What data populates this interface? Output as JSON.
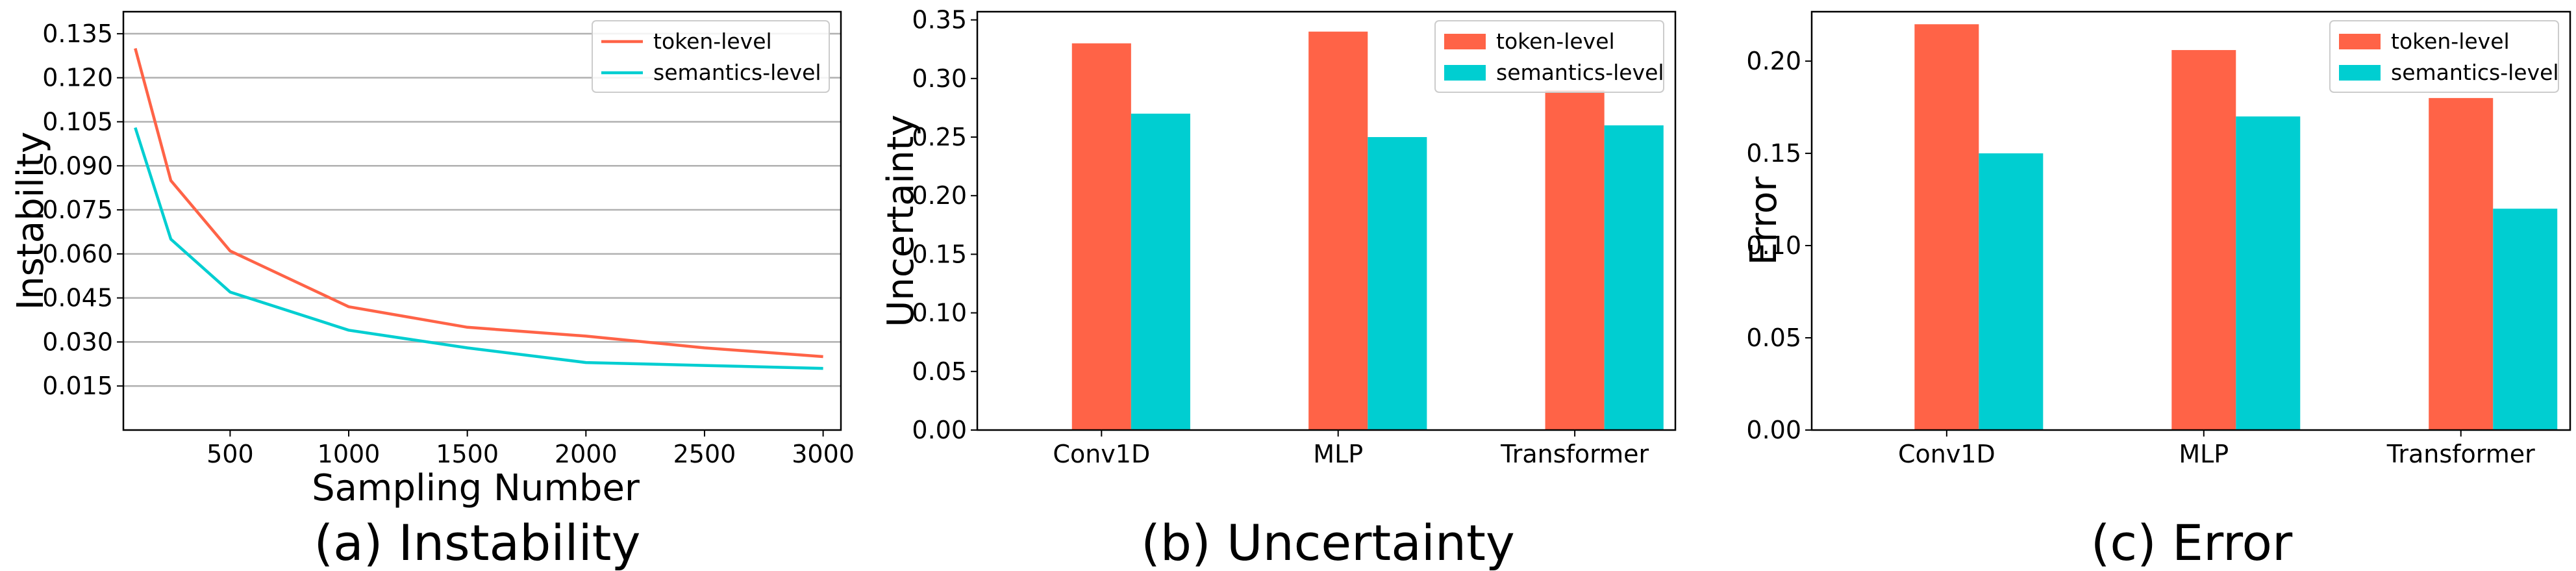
{
  "colors": {
    "token": "#ff6347",
    "semantics": "#00ced1",
    "grid": "#b0b0b0",
    "axis": "#000000"
  },
  "chart_data": [
    {
      "type": "line",
      "caption": "(a) Instability",
      "xlabel": "Sampling Number",
      "ylabel": "Instability",
      "xlim": [
        50,
        3075
      ],
      "ylim": [
        0.0,
        0.1425
      ],
      "xticks": [
        500,
        1000,
        1500,
        2000,
        2500,
        3000
      ],
      "yticks": [
        0.015,
        0.03,
        0.045,
        0.06,
        0.075,
        0.09,
        0.105,
        0.12,
        0.135
      ],
      "ytick_labels": [
        "0.015",
        "0.030",
        "0.045",
        "0.060",
        "0.075",
        "0.090",
        "0.105",
        "0.120",
        "0.135"
      ],
      "grid": "horizontal",
      "legend": "top-right",
      "x": [
        100,
        250,
        500,
        1000,
        1500,
        2000,
        2500,
        3000
      ],
      "series": [
        {
          "name": "token-level",
          "color_key": "token",
          "values": [
            0.13,
            0.085,
            0.061,
            0.042,
            0.035,
            0.032,
            0.028,
            0.025
          ]
        },
        {
          "name": "semantics-level",
          "color_key": "semantics",
          "values": [
            0.103,
            0.065,
            0.047,
            0.034,
            0.028,
            0.023,
            0.022,
            0.021
          ]
        }
      ]
    },
    {
      "type": "bar",
      "caption": "(b) Uncertainty",
      "xlabel": "",
      "ylabel": "Uncertainty",
      "ylim": [
        0.0,
        0.357
      ],
      "yticks": [
        0.0,
        0.05,
        0.1,
        0.15,
        0.2,
        0.25,
        0.3,
        0.35
      ],
      "ytick_labels": [
        "0.00",
        "0.05",
        "0.10",
        "0.15",
        "0.20",
        "0.25",
        "0.30",
        "0.35"
      ],
      "grid": "off",
      "legend": "top-right",
      "categories": [
        "Conv1D",
        "MLP",
        "Transformer"
      ],
      "series": [
        {
          "name": "token-level",
          "color_key": "token",
          "values": [
            0.33,
            0.34,
            0.29
          ]
        },
        {
          "name": "semantics-level",
          "color_key": "semantics",
          "values": [
            0.27,
            0.25,
            0.26
          ]
        }
      ]
    },
    {
      "type": "bar",
      "caption": "(c) Error",
      "xlabel": "",
      "ylabel": "Error",
      "ylim": [
        0.0,
        0.2268
      ],
      "yticks": [
        0.0,
        0.05,
        0.1,
        0.15,
        0.2
      ],
      "ytick_labels": [
        "0.00",
        "0.05",
        "0.10",
        "0.15",
        "0.20"
      ],
      "grid": "off",
      "legend": "top-right",
      "categories": [
        "Conv1D",
        "MLP",
        "Transformer"
      ],
      "series": [
        {
          "name": "token-level",
          "color_key": "token",
          "values": [
            0.22,
            0.206,
            0.18
          ]
        },
        {
          "name": "semantics-level",
          "color_key": "semantics",
          "values": [
            0.15,
            0.17,
            0.12
          ]
        }
      ]
    }
  ]
}
